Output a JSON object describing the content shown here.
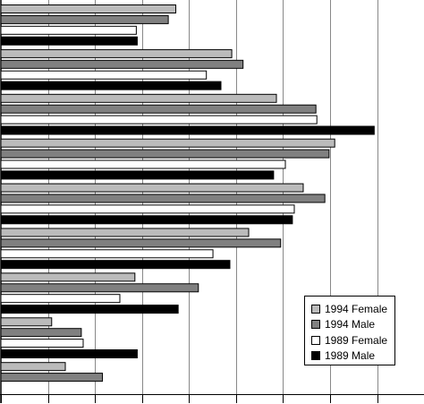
{
  "chart_data": {
    "type": "bar",
    "orientation": "horizontal",
    "title": "",
    "xlabel": "",
    "ylabel": "",
    "xlim": [
      0,
      80
    ],
    "grid": "vertical",
    "legend_position": "bottom-right",
    "series": [
      {
        "name": "1994 Female",
        "color": "#bbbbbb",
        "values": [
          37.2,
          49.1,
          58.6,
          71.0,
          64.3,
          52.7,
          28.5,
          10.8,
          13.7
        ]
      },
      {
        "name": "1994 Male",
        "color": "#808080",
        "values": [
          35.6,
          51.5,
          67.0,
          69.8,
          68.9,
          59.5,
          42.0,
          17.1,
          21.6
        ]
      },
      {
        "name": "1989 Female",
        "color": "#ffffff",
        "values": [
          28.8,
          43.7,
          67.2,
          60.5,
          62.4,
          45.1,
          25.3,
          17.5,
          0
        ]
      },
      {
        "name": "1989 Male",
        "color": "#000000",
        "values": [
          29.0,
          46.8,
          79.4,
          58.0,
          62.0,
          48.7,
          37.7,
          29.0,
          0
        ]
      }
    ]
  }
}
